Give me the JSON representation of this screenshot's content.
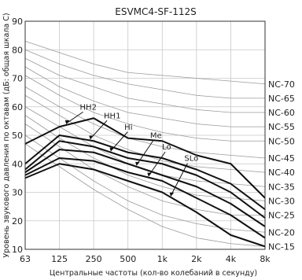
{
  "chart_data": {
    "type": "line",
    "title": "ESVMC4-SF-112S",
    "xlabel": "Центральные частоты (кол-во колебаний в секунду)",
    "ylabel": "Уровень звукового давления по октавам (дБ: общая шкала C)",
    "x": [
      "63",
      "125",
      "250",
      "500",
      "1k",
      "2k",
      "4k",
      "8k"
    ],
    "yticks": [
      10,
      20,
      30,
      40,
      50,
      60,
      70,
      80,
      90
    ],
    "ylim": [
      10,
      90
    ],
    "grid": true,
    "nc_curves": [
      {
        "name": "NC-70",
        "values": [
          83,
          79,
          75,
          72,
          71,
          70,
          69,
          68
        ]
      },
      {
        "name": "NC-65",
        "values": [
          80,
          75,
          71,
          68,
          66,
          64,
          63,
          63
        ]
      },
      {
        "name": "NC-60",
        "values": [
          77,
          71,
          67,
          63,
          61,
          59,
          58,
          58
        ]
      },
      {
        "name": "NC-55",
        "values": [
          74,
          67,
          62,
          58,
          56,
          54,
          53,
          53
        ]
      },
      {
        "name": "NC-50",
        "values": [
          71,
          64,
          58,
          54,
          51,
          49,
          48,
          48
        ]
      },
      {
        "name": "NC-45",
        "values": [
          67,
          60,
          54,
          49,
          46,
          44,
          43,
          42
        ]
      },
      {
        "name": "NC-40",
        "values": [
          64,
          57,
          50,
          45,
          41,
          39,
          38,
          37
        ]
      },
      {
        "name": "NC-35",
        "values": [
          60,
          53,
          46,
          40,
          36,
          34,
          33,
          32
        ]
      },
      {
        "name": "NC-30",
        "values": [
          57,
          49,
          42,
          36,
          32,
          29,
          28,
          27
        ]
      },
      {
        "name": "NC-25",
        "values": [
          54,
          46,
          38,
          32,
          27,
          24,
          22,
          22
        ]
      },
      {
        "name": "NC-20",
        "values": [
          50,
          42,
          34,
          27,
          22,
          19,
          17,
          16
        ]
      },
      {
        "name": "NC-15",
        "values": [
          47,
          39,
          31,
          24,
          18,
          14,
          12,
          11
        ]
      }
    ],
    "series": [
      {
        "name": "HH2",
        "values": [
          47,
          53,
          56,
          49,
          48,
          43,
          40,
          28
        ],
        "label_at": [
          1.55,
          59
        ]
      },
      {
        "name": "HH1",
        "values": [
          40,
          50,
          48,
          44,
          42,
          38,
          33,
          24
        ],
        "label_at": [
          2.25,
          56
        ]
      },
      {
        "name": "Hi",
        "values": [
          38,
          48,
          46,
          42,
          40,
          36,
          30,
          21
        ],
        "label_at": [
          2.85,
          52
        ]
      },
      {
        "name": "Me",
        "values": [
          37,
          45,
          44,
          40,
          36,
          32,
          26,
          18
        ],
        "label_at": [
          3.6,
          49
        ]
      },
      {
        "name": "Lo",
        "values": [
          36,
          42,
          41,
          37,
          34,
          28,
          22,
          14
        ],
        "label_at": [
          3.95,
          45
        ]
      },
      {
        "name": "SLo",
        "values": [
          35,
          40,
          38,
          34,
          30,
          23,
          15,
          11
        ],
        "label_at": [
          4.6,
          41
        ]
      }
    ]
  }
}
